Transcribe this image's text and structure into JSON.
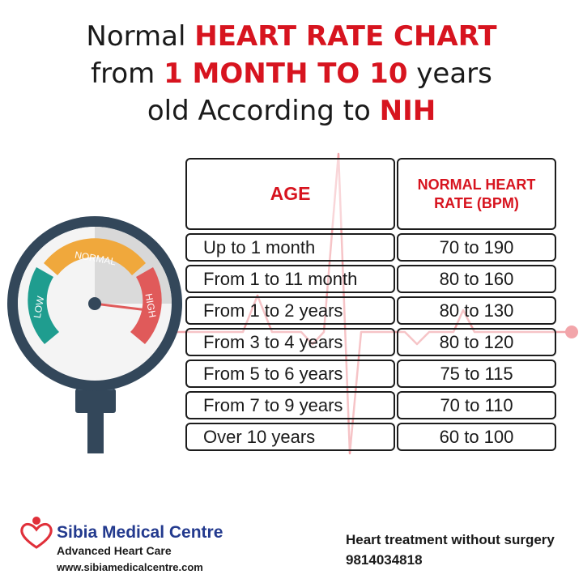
{
  "title": {
    "line1_plain": "Normal ",
    "line1_red": "HEART RATE CHART",
    "line2_plain_a": "from ",
    "line2_red": "1 MONTH TO 10",
    "line2_plain_b": " years",
    "line3_plain": "old According to ",
    "line3_red": "NIH"
  },
  "gauge": {
    "low_label": "LOW",
    "normal_label": "NORMAL",
    "high_label": "HIGH",
    "colors": {
      "low": "#1f9d8f",
      "normal": "#f0a83c",
      "high": "#e05a5a",
      "ring": "#33475a"
    }
  },
  "table": {
    "header_age": "AGE",
    "header_rate_line1": "NORMAL HEART",
    "header_rate_line2": "RATE (BPM)",
    "rows": [
      {
        "age": "Up to 1 month",
        "rate": "70 to 190"
      },
      {
        "age": "From 1 to 11 month",
        "rate": "80 to 160"
      },
      {
        "age": "From 1 to 2 years",
        "rate": "80 to 130"
      },
      {
        "age": "From 3 to 4 years",
        "rate": "80 to 120"
      },
      {
        "age": "From 5 to 6 years",
        "rate": "75 to 115"
      },
      {
        "age": "From 7 to 9 years",
        "rate": "70 to 110"
      },
      {
        "age": "Over 10 years",
        "rate": "60 to 100"
      }
    ]
  },
  "footer": {
    "brand": "Sibia Medical Centre",
    "subtitle": "Advanced Heart Care",
    "website": "www.sibiamedicalcentre.com",
    "tagline": "Heart treatment without surgery",
    "phone": "9814034818"
  },
  "colors": {
    "accent_red": "#d7141f",
    "brand_blue": "#233a8e",
    "ecg_line": "#f2a5aa"
  }
}
